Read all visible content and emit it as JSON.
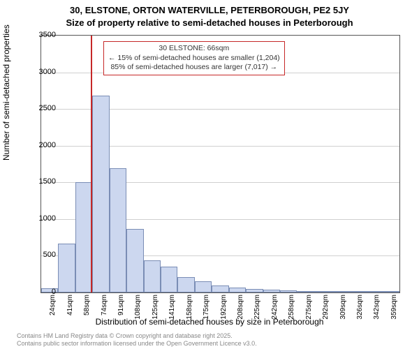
{
  "title_line1": "30, ELSTONE, ORTON WATERVILLE, PETERBOROUGH, PE2 5JY",
  "title_line2": "Size of property relative to semi-detached houses in Peterborough",
  "ylabel": "Number of semi-detached properties",
  "xlabel": "Distribution of semi-detached houses by size in Peterborough",
  "footer_line1": "Contains HM Land Registry data © Crown copyright and database right 2025.",
  "footer_line2": "Contains public sector information licensed under the Open Government Licence v3.0.",
  "annotation": {
    "line1": "30 ELSTONE: 66sqm",
    "line2": "← 15% of semi-detached houses are smaller (1,204)",
    "line3": "85% of semi-detached houses are larger (7,017) →"
  },
  "chart": {
    "type": "histogram",
    "ylim": [
      0,
      3500
    ],
    "ytick_step": 500,
    "yticks": [
      0,
      500,
      1000,
      1500,
      2000,
      2500,
      3000,
      3500
    ],
    "xticks": [
      "24sqm",
      "41sqm",
      "58sqm",
      "74sqm",
      "91sqm",
      "108sqm",
      "125sqm",
      "141sqm",
      "158sqm",
      "175sqm",
      "192sqm",
      "208sqm",
      "225sqm",
      "242sqm",
      "258sqm",
      "275sqm",
      "292sqm",
      "309sqm",
      "326sqm",
      "342sqm",
      "359sqm"
    ],
    "bar_color": "#ccd7ef",
    "bar_border_color": "#7a8db5",
    "grid_color": "#d0d0d0",
    "background_color": "#ffffff",
    "marker_color": "#c62828",
    "marker_x_value": 66,
    "x_range": [
      18,
      365
    ],
    "bar_width_ratio": 1.0,
    "values": [
      60,
      670,
      1500,
      2680,
      1690,
      870,
      440,
      350,
      210,
      150,
      100,
      70,
      50,
      40,
      30,
      20,
      15,
      12,
      10,
      8,
      6
    ],
    "title_fontsize": 13,
    "label_fontsize": 12,
    "tick_fontsize": 11,
    "xtick_fontsize": 10,
    "annotation_fontsize": 10.5
  }
}
